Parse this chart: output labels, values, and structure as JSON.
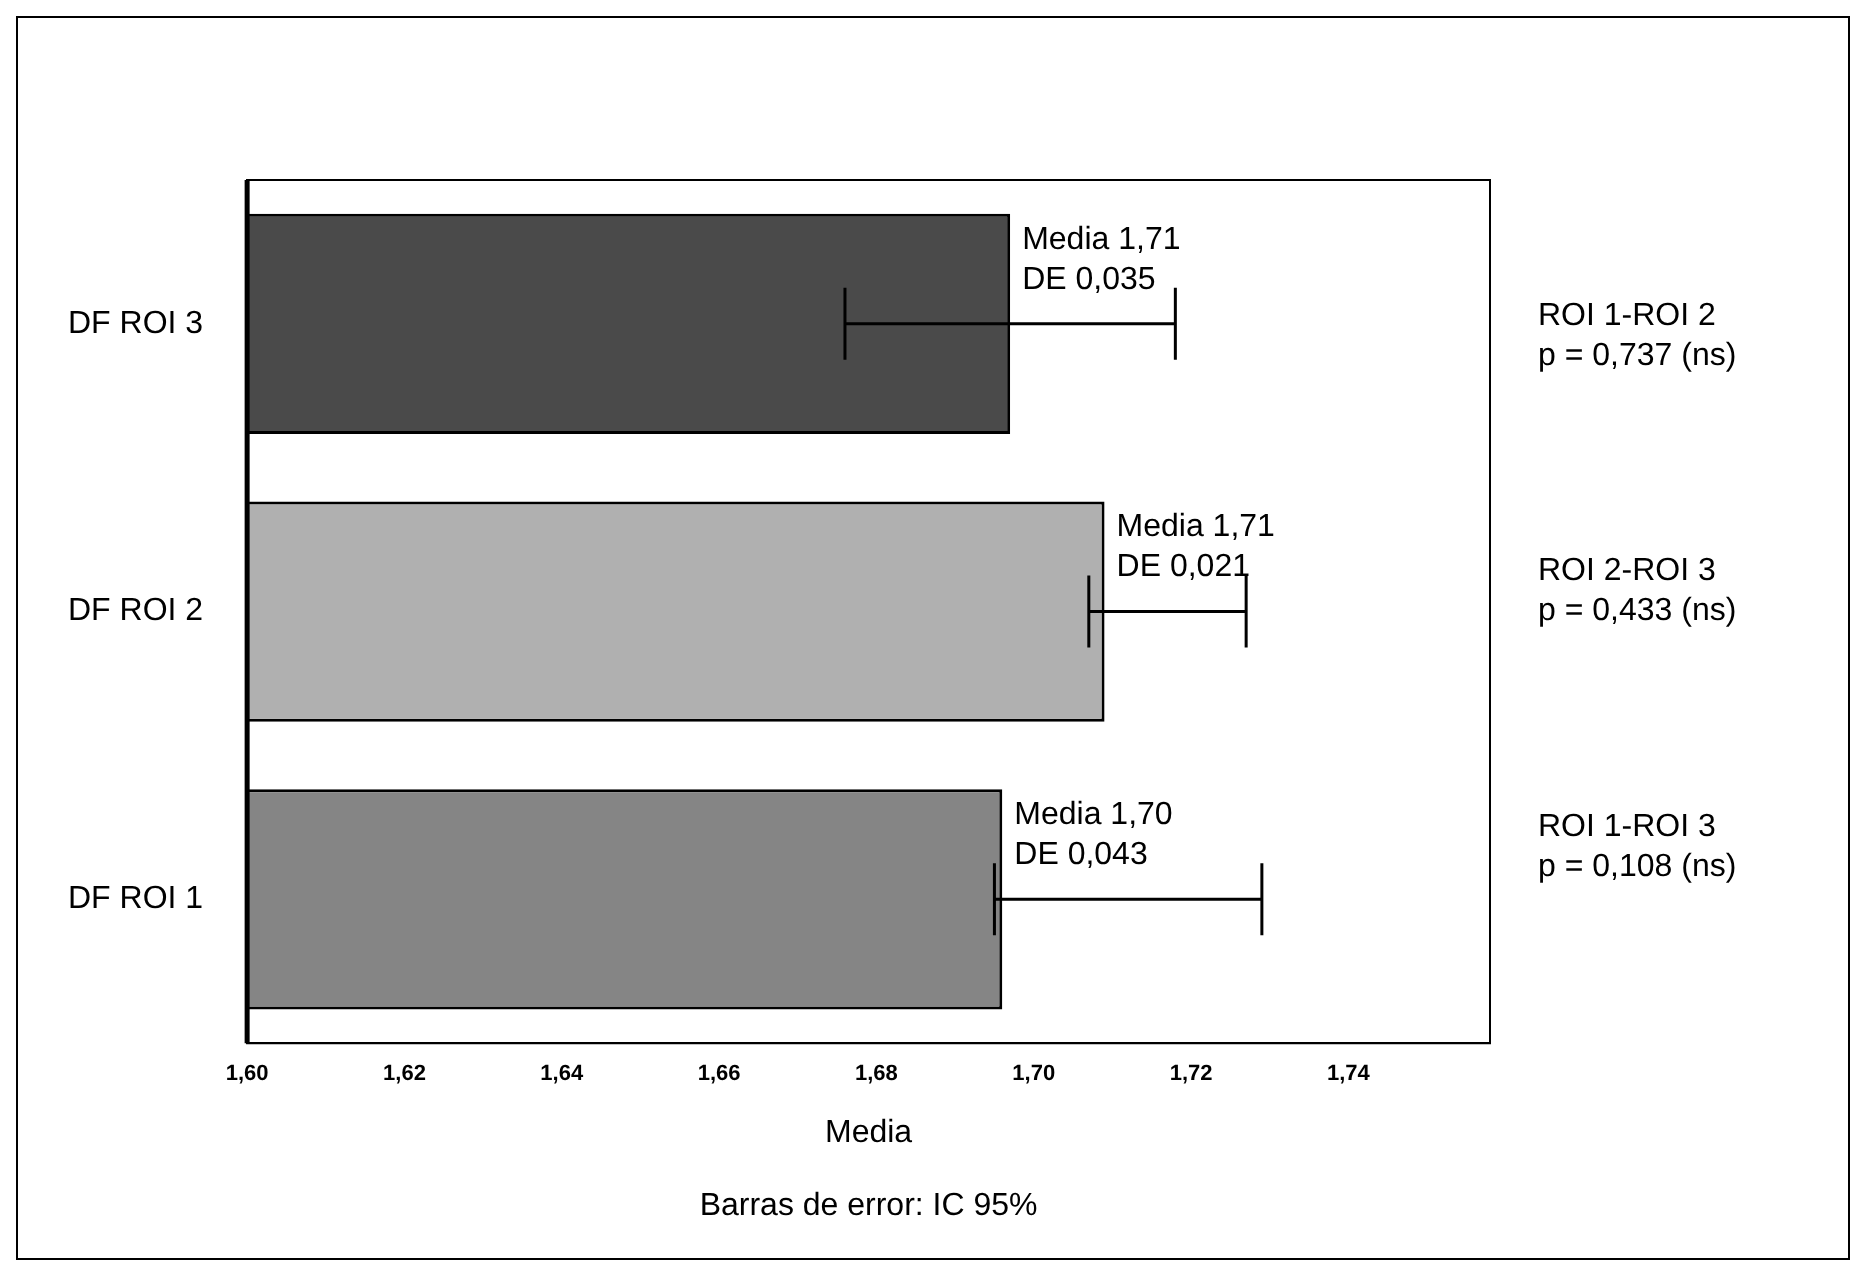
{
  "chart_data": {
    "type": "bar",
    "orientation": "horizontal",
    "categories": [
      "DF ROI 3",
      "DF ROI 2",
      "DF ROI 1"
    ],
    "values": [
      1.697,
      1.709,
      1.696
    ],
    "colors": [
      "#4a4a4a",
      "#b0b0b0",
      "#858585"
    ],
    "errors": [
      [
        1.676,
        1.718
      ],
      [
        1.707,
        1.727
      ],
      [
        1.695,
        1.729
      ]
    ],
    "xlim": [
      1.6,
      1.758
    ],
    "xticks": [
      {
        "value": 1.6,
        "label": "1,60"
      },
      {
        "value": 1.62,
        "label": "1,62"
      },
      {
        "value": 1.64,
        "label": "1,64"
      },
      {
        "value": 1.66,
        "label": "1,66"
      },
      {
        "value": 1.68,
        "label": "1,68"
      },
      {
        "value": 1.7,
        "label": "1,70"
      },
      {
        "value": 1.72,
        "label": "1,72"
      },
      {
        "value": 1.74,
        "label": "1,74"
      }
    ],
    "xlabel": "Media",
    "grid": false,
    "legend": false,
    "annotations": [
      {
        "text": "Media 1,71\nDE 0,035",
        "x": 1.697,
        "y": "DF ROI 3"
      },
      {
        "text": "Media 1,71\nDE 0,021",
        "x": 1.709,
        "y": "DF ROI 2"
      },
      {
        "text": "Media 1,70\nDE 0,043",
        "x": 1.696,
        "y": "DF ROI 1"
      },
      "ROI 1-ROI 2\np = 0,737 (ns)",
      "ROI 2-ROI 3\np = 0,433 (ns)",
      "ROI 1-ROI 3\np = 0,108 (ns)",
      "Barras de error: IC 95%"
    ]
  }
}
